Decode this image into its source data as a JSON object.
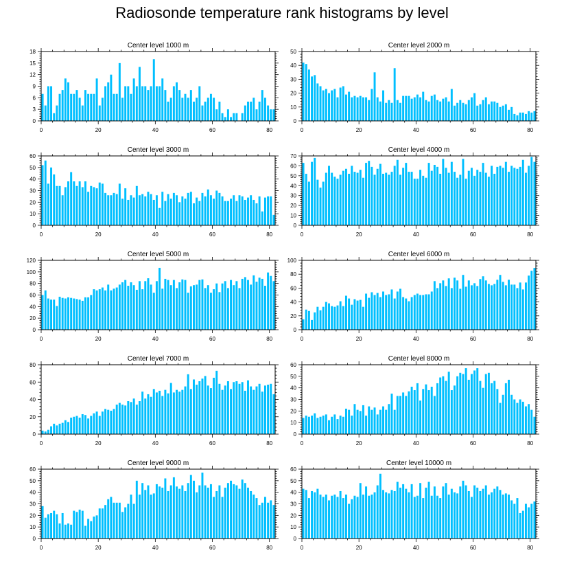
{
  "title": "Radiosonde temperature rank histograms by level",
  "bar_color": "#00BFFF",
  "chart_data": [
    {
      "type": "bar",
      "title": "Center level 1000 m",
      "ylim": [
        0,
        18
      ],
      "yticks": [
        0,
        3,
        6,
        9,
        12,
        15,
        18
      ],
      "xlim": [
        0,
        82
      ],
      "xticks": [
        0,
        20,
        40,
        60,
        80
      ],
      "values": [
        7,
        4,
        9,
        9,
        2,
        4,
        7,
        8,
        11,
        10,
        7,
        7,
        8,
        6,
        4,
        8,
        7,
        7,
        7,
        11,
        4,
        6,
        9,
        10,
        12,
        7,
        7,
        15,
        6,
        9,
        9,
        7,
        11,
        9,
        14,
        9,
        9,
        8,
        9,
        16,
        9,
        9,
        11,
        8,
        5,
        6,
        9,
        10,
        8,
        6,
        7,
        6,
        8,
        5,
        6,
        9,
        4,
        5,
        6,
        7,
        6,
        3,
        5,
        2,
        1,
        3,
        1,
        2,
        2,
        0,
        2,
        4,
        5,
        5,
        6,
        3,
        5,
        8,
        6,
        4,
        3,
        3
      ]
    },
    {
      "type": "bar",
      "title": "Center level 2000 m",
      "ylim": [
        0,
        50
      ],
      "yticks": [
        0,
        10,
        20,
        30,
        40,
        50
      ],
      "xlim": [
        0,
        82
      ],
      "xticks": [
        0,
        20,
        40,
        60,
        80
      ],
      "values": [
        42,
        41,
        37,
        32,
        33,
        27,
        25,
        22,
        23,
        20,
        22,
        23,
        17,
        24,
        25,
        19,
        21,
        17,
        18,
        17,
        18,
        17,
        17,
        15,
        23,
        35,
        17,
        14,
        22,
        13,
        15,
        13,
        38,
        15,
        13,
        18,
        18,
        18,
        16,
        17,
        19,
        17,
        21,
        15,
        14,
        18,
        19,
        15,
        14,
        16,
        17,
        14,
        23,
        11,
        13,
        15,
        13,
        12,
        15,
        17,
        20,
        11,
        12,
        15,
        17,
        12,
        14,
        14,
        13,
        10,
        11,
        12,
        8,
        10,
        5,
        4,
        6,
        6,
        5,
        7,
        6,
        7
      ]
    },
    {
      "type": "bar",
      "title": "Center level 3000 m",
      "ylim": [
        0,
        60
      ],
      "yticks": [
        0,
        10,
        20,
        30,
        40,
        50,
        60
      ],
      "xlim": [
        0,
        82
      ],
      "xticks": [
        0,
        20,
        40,
        60,
        80
      ],
      "values": [
        52,
        56,
        36,
        50,
        44,
        34,
        34,
        26,
        33,
        38,
        46,
        38,
        34,
        38,
        33,
        38,
        29,
        34,
        33,
        32,
        37,
        36,
        28,
        26,
        26,
        28,
        27,
        36,
        23,
        32,
        22,
        26,
        24,
        34,
        26,
        27,
        25,
        29,
        27,
        22,
        26,
        15,
        29,
        21,
        27,
        23,
        28,
        26,
        20,
        25,
        23,
        28,
        29,
        19,
        24,
        21,
        28,
        25,
        31,
        26,
        23,
        30,
        28,
        25,
        21,
        21,
        23,
        26,
        21,
        26,
        25,
        22,
        24,
        26,
        22,
        19,
        25,
        12,
        24,
        25,
        25,
        9
      ]
    },
    {
      "type": "bar",
      "title": "Center level 4000 m",
      "ylim": [
        0,
        70
      ],
      "yticks": [
        0,
        10,
        20,
        30,
        40,
        50,
        60,
        70
      ],
      "xlim": [
        0,
        82
      ],
      "xticks": [
        0,
        20,
        40,
        60,
        80
      ],
      "values": [
        63,
        52,
        44,
        64,
        68,
        46,
        38,
        44,
        53,
        60,
        53,
        49,
        47,
        51,
        55,
        57,
        52,
        60,
        54,
        53,
        56,
        48,
        63,
        65,
        59,
        51,
        57,
        62,
        52,
        53,
        51,
        54,
        60,
        66,
        51,
        58,
        63,
        54,
        54,
        47,
        47,
        56,
        50,
        48,
        63,
        55,
        61,
        59,
        52,
        67,
        58,
        53,
        64,
        54,
        48,
        51,
        67,
        47,
        55,
        58,
        50,
        56,
        54,
        63,
        53,
        49,
        60,
        52,
        59,
        60,
        58,
        64,
        54,
        60,
        58,
        57,
        59,
        66,
        53,
        60,
        69,
        64
      ]
    },
    {
      "type": "bar",
      "title": "Center level 5000 m",
      "ylim": [
        0,
        120
      ],
      "yticks": [
        0,
        20,
        40,
        60,
        80,
        100,
        120
      ],
      "xlim": [
        0,
        82
      ],
      "xticks": [
        0,
        20,
        40,
        60,
        80
      ],
      "values": [
        60,
        68,
        54,
        52,
        52,
        41,
        57,
        55,
        54,
        56,
        55,
        54,
        53,
        52,
        50,
        56,
        56,
        60,
        70,
        68,
        70,
        73,
        68,
        78,
        68,
        71,
        73,
        78,
        82,
        86,
        76,
        82,
        77,
        69,
        84,
        70,
        84,
        89,
        78,
        64,
        84,
        107,
        71,
        88,
        86,
        77,
        86,
        72,
        82,
        87,
        86,
        64,
        75,
        77,
        78,
        86,
        87,
        72,
        77,
        64,
        70,
        80,
        65,
        80,
        84,
        72,
        86,
        77,
        84,
        72,
        88,
        91,
        86,
        78,
        94,
        83,
        90,
        88,
        76,
        99,
        93,
        84
      ]
    },
    {
      "type": "bar",
      "title": "Center level 6000 m",
      "ylim": [
        0,
        100
      ],
      "yticks": [
        0,
        20,
        40,
        60,
        80,
        100
      ],
      "xlim": [
        0,
        82
      ],
      "xticks": [
        0,
        20,
        40,
        60,
        80
      ],
      "values": [
        15,
        29,
        27,
        14,
        25,
        33,
        28,
        33,
        40,
        38,
        34,
        33,
        35,
        41,
        34,
        49,
        45,
        36,
        44,
        42,
        43,
        33,
        52,
        46,
        54,
        50,
        53,
        47,
        55,
        50,
        51,
        58,
        45,
        55,
        59,
        47,
        45,
        41,
        47,
        50,
        52,
        50,
        50,
        51,
        51,
        55,
        70,
        60,
        67,
        71,
        63,
        74,
        60,
        75,
        71,
        59,
        79,
        62,
        71,
        64,
        67,
        63,
        73,
        77,
        71,
        66,
        64,
        66,
        72,
        79,
        69,
        64,
        72,
        65,
        65,
        60,
        68,
        58,
        68,
        78,
        85,
        89
      ]
    },
    {
      "type": "bar",
      "title": "Center level 7000 m",
      "ylim": [
        0,
        80
      ],
      "yticks": [
        0,
        20,
        40,
        60,
        80
      ],
      "xlim": [
        0,
        82
      ],
      "xticks": [
        0,
        20,
        40,
        60,
        80
      ],
      "values": [
        4,
        3,
        5,
        9,
        12,
        10,
        12,
        13,
        16,
        14,
        19,
        20,
        21,
        19,
        23,
        22,
        18,
        21,
        24,
        26,
        21,
        26,
        29,
        28,
        27,
        29,
        34,
        36,
        34,
        33,
        38,
        37,
        41,
        34,
        38,
        49,
        41,
        46,
        43,
        52,
        48,
        50,
        44,
        51,
        47,
        59,
        48,
        51,
        49,
        51,
        55,
        69,
        52,
        63,
        57,
        61,
        64,
        67,
        56,
        53,
        65,
        73,
        58,
        51,
        56,
        61,
        52,
        60,
        61,
        58,
        60,
        50,
        62,
        55,
        51,
        55,
        58,
        49,
        56,
        57,
        58,
        46
      ]
    },
    {
      "type": "bar",
      "title": "Center level 8000 m",
      "ylim": [
        0,
        60
      ],
      "yticks": [
        0,
        10,
        20,
        30,
        40,
        50,
        60
      ],
      "xlim": [
        0,
        82
      ],
      "xticks": [
        0,
        20,
        40,
        60,
        80
      ],
      "values": [
        14,
        16,
        15,
        16,
        18,
        14,
        15,
        16,
        17,
        12,
        15,
        17,
        13,
        16,
        15,
        22,
        21,
        16,
        26,
        21,
        20,
        25,
        16,
        24,
        21,
        23,
        17,
        21,
        24,
        21,
        26,
        35,
        21,
        33,
        33,
        36,
        33,
        37,
        41,
        38,
        44,
        29,
        39,
        43,
        38,
        41,
        33,
        44,
        49,
        50,
        46,
        54,
        38,
        42,
        50,
        53,
        52,
        57,
        47,
        52,
        55,
        57,
        46,
        40,
        52,
        53,
        44,
        46,
        39,
        27,
        34,
        44,
        47,
        34,
        30,
        27,
        30,
        28,
        24,
        26,
        21,
        15
      ]
    },
    {
      "type": "bar",
      "title": "Center level 9000 m",
      "ylim": [
        0,
        60
      ],
      "yticks": [
        0,
        10,
        20,
        30,
        40,
        50,
        60
      ],
      "xlim": [
        0,
        82
      ],
      "xticks": [
        0,
        20,
        40,
        60,
        80
      ],
      "values": [
        28,
        18,
        21,
        22,
        24,
        21,
        13,
        22,
        12,
        13,
        12,
        24,
        23,
        25,
        24,
        11,
        17,
        15,
        19,
        20,
        26,
        26,
        29,
        34,
        36,
        31,
        31,
        31,
        23,
        27,
        30,
        38,
        30,
        50,
        38,
        48,
        42,
        46,
        38,
        39,
        47,
        45,
        44,
        52,
        41,
        46,
        53,
        45,
        43,
        46,
        41,
        48,
        55,
        50,
        40,
        46,
        57,
        46,
        44,
        47,
        36,
        41,
        46,
        36,
        44,
        48,
        50,
        47,
        46,
        43,
        51,
        48,
        44,
        41,
        38,
        35,
        29,
        31,
        36,
        31,
        33,
        29
      ]
    },
    {
      "type": "bar",
      "title": "Center level 10000 m",
      "ylim": [
        0,
        60
      ],
      "yticks": [
        0,
        10,
        20,
        30,
        40,
        50,
        60
      ],
      "xlim": [
        0,
        82
      ],
      "xticks": [
        0,
        20,
        40,
        60,
        80
      ],
      "values": [
        43,
        42,
        35,
        41,
        40,
        43,
        38,
        36,
        38,
        33,
        37,
        38,
        36,
        41,
        35,
        38,
        30,
        34,
        37,
        36,
        48,
        38,
        45,
        37,
        38,
        40,
        46,
        56,
        42,
        40,
        39,
        42,
        41,
        49,
        44,
        47,
        43,
        40,
        47,
        36,
        37,
        48,
        35,
        44,
        49,
        37,
        45,
        37,
        35,
        45,
        48,
        38,
        43,
        40,
        39,
        45,
        50,
        46,
        41,
        36,
        46,
        44,
        41,
        43,
        46,
        38,
        40,
        43,
        45,
        42,
        38,
        39,
        38,
        33,
        30,
        35,
        22,
        24,
        30,
        27,
        30,
        32
      ]
    }
  ]
}
